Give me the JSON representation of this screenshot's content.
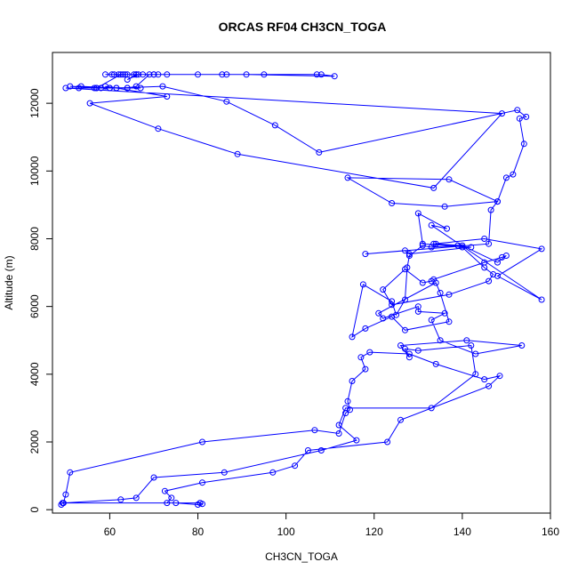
{
  "chart_data": {
    "type": "line",
    "title": "ORCAS RF04 CH3CN_TOGA",
    "xlabel": "CH3CN_TOGA",
    "ylabel": "Altitude (m)",
    "xlim": [
      47,
      160
    ],
    "ylim": [
      -100,
      13500
    ],
    "xticks": [
      60,
      80,
      100,
      120,
      140,
      160
    ],
    "yticks": [
      0,
      2000,
      4000,
      6000,
      8000,
      10000,
      12000
    ],
    "grid": false,
    "legend": "none",
    "series_color": "#0000ff",
    "series": [
      {
        "points": [
          [
            49,
            150
          ],
          [
            49.3,
            200
          ],
          [
            75,
            200
          ],
          [
            80,
            150
          ],
          [
            81,
            170
          ],
          [
            80.5,
            200
          ],
          [
            73,
            200
          ],
          [
            74,
            350
          ],
          [
            72.5,
            550
          ],
          [
            81,
            800
          ],
          [
            97,
            1100
          ],
          [
            102,
            1300
          ],
          [
            105,
            1750
          ],
          [
            123,
            2000
          ],
          [
            126,
            2650
          ],
          [
            146,
            3650
          ],
          [
            148.5,
            3950
          ],
          [
            145,
            3850
          ],
          [
            134,
            4300
          ],
          [
            128,
            4600
          ],
          [
            119,
            4650
          ],
          [
            117,
            4500
          ],
          [
            118,
            4150
          ],
          [
            115,
            3800
          ],
          [
            114,
            3200
          ],
          [
            114.5,
            2950
          ],
          [
            113.5,
            2850
          ],
          [
            112,
            2250
          ],
          [
            106.5,
            2350
          ],
          [
            81,
            2000
          ],
          [
            51,
            1100
          ],
          [
            50,
            450
          ],
          [
            49.5,
            200
          ],
          [
            62.5,
            300
          ],
          [
            66,
            350
          ],
          [
            70,
            950
          ],
          [
            86,
            1100
          ],
          [
            108,
            1750
          ],
          [
            116,
            2050
          ],
          [
            112,
            2500
          ],
          [
            113.5,
            3000
          ],
          [
            133,
            3000
          ],
          [
            143,
            4000
          ],
          [
            142,
            4850
          ],
          [
            130,
            4700
          ],
          [
            127,
            4750
          ],
          [
            128,
            4500
          ],
          [
            126,
            4850
          ],
          [
            141,
            5000
          ],
          [
            153.5,
            4850
          ],
          [
            143,
            4600
          ],
          [
            135,
            5000
          ],
          [
            133,
            5600
          ],
          [
            136,
            5800
          ],
          [
            130,
            5850
          ],
          [
            130,
            6000
          ],
          [
            122,
            5650
          ],
          [
            121,
            5800
          ],
          [
            134,
            6700
          ],
          [
            135,
            6400
          ],
          [
            137,
            5550
          ],
          [
            127,
            5300
          ],
          [
            124,
            5700
          ],
          [
            118,
            5350
          ],
          [
            115,
            5100
          ],
          [
            117.5,
            6650
          ],
          [
            124,
            6150
          ],
          [
            125,
            5750
          ],
          [
            127,
            6200
          ],
          [
            127.5,
            7150
          ],
          [
            128,
            7500
          ],
          [
            131,
            7800
          ],
          [
            133,
            7750
          ],
          [
            139,
            7800
          ],
          [
            140,
            7750
          ],
          [
            145,
            7150
          ],
          [
            147,
            6950
          ],
          [
            146,
            6750
          ],
          [
            137,
            6350
          ],
          [
            124,
            6050
          ],
          [
            122,
            6500
          ],
          [
            127,
            7100
          ],
          [
            131,
            6700
          ],
          [
            133,
            6750
          ],
          [
            133.5,
            6800
          ],
          [
            145,
            7300
          ],
          [
            149,
            7450
          ],
          [
            150,
            7500
          ],
          [
            148,
            7300
          ],
          [
            140,
            7800
          ],
          [
            134,
            7850
          ],
          [
            133.5,
            7850
          ],
          [
            145,
            8000
          ],
          [
            158,
            7700
          ],
          [
            148,
            6900
          ],
          [
            158,
            6200
          ],
          [
            133,
            8400
          ],
          [
            136.5,
            8300
          ],
          [
            130,
            8750
          ],
          [
            131,
            7850
          ],
          [
            142,
            7750
          ],
          [
            128,
            7550
          ],
          [
            127,
            7650
          ],
          [
            118,
            7550
          ],
          [
            146,
            7850
          ],
          [
            146.5,
            8850
          ],
          [
            148,
            9100
          ],
          [
            136,
            8950
          ],
          [
            124,
            9050
          ],
          [
            114,
            9800
          ],
          [
            137,
            9750
          ],
          [
            148,
            9100
          ],
          [
            150,
            9800
          ],
          [
            151.5,
            9900
          ],
          [
            154,
            10800
          ],
          [
            153,
            11550
          ],
          [
            154.5,
            11600
          ],
          [
            152.5,
            11800
          ],
          [
            107.5,
            10550
          ],
          [
            97.5,
            11350
          ],
          [
            86.5,
            12050
          ],
          [
            72,
            12500
          ],
          [
            61.5,
            12450
          ],
          [
            73,
            12200
          ],
          [
            55.5,
            12000
          ],
          [
            71,
            11250
          ],
          [
            89,
            10500
          ],
          [
            133.5,
            9500
          ],
          [
            149,
            11700
          ],
          [
            50,
            12450
          ],
          [
            53,
            12450
          ],
          [
            57,
            12450
          ],
          [
            60,
            12450
          ],
          [
            59,
            12500
          ],
          [
            61.5,
            12450
          ],
          [
            53.5,
            12500
          ],
          [
            60,
            12450
          ],
          [
            64,
            12450
          ],
          [
            58,
            12450
          ],
          [
            51,
            12500
          ],
          [
            64,
            12450
          ],
          [
            66,
            12500
          ],
          [
            69,
            12850
          ],
          [
            65.5,
            12850
          ],
          [
            64,
            12850
          ],
          [
            60.5,
            12850
          ],
          [
            62,
            12850
          ],
          [
            63.5,
            12850
          ],
          [
            66,
            12850
          ],
          [
            70,
            12850
          ],
          [
            73,
            12850
          ],
          [
            85.5,
            12850
          ],
          [
            86.5,
            12850
          ],
          [
            95,
            12850
          ],
          [
            107,
            12850
          ],
          [
            108,
            12850
          ],
          [
            111,
            12800
          ],
          [
            91,
            12850
          ],
          [
            80,
            12850
          ],
          [
            71,
            12850
          ],
          [
            70,
            12850
          ],
          [
            66.5,
            12850
          ],
          [
            64,
            12700
          ],
          [
            66,
            12850
          ],
          [
            63,
            12850
          ],
          [
            59,
            12850
          ],
          [
            61,
            12850
          ],
          [
            67.5,
            12850
          ],
          [
            62.5,
            12850
          ],
          [
            57,
            12450
          ],
          [
            56.5,
            12450
          ],
          [
            67,
            12450
          ]
        ]
      }
    ]
  }
}
